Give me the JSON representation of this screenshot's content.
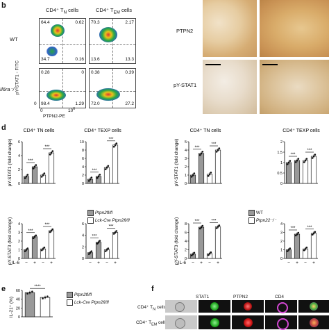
{
  "panel_b": {
    "label": "b",
    "col_titles": [
      "CD4⁺ T",
      "N",
      "cells",
      "CD4⁺ T",
      "EM",
      "cells"
    ],
    "row_labels": [
      "WT",
      "Il6ra⁻/⁻"
    ],
    "y_axis": "pY-STAT1 - FITC",
    "x_axis": "PTPN2-PE",
    "x_ticks": [
      "0",
      "10",
      "6"
    ],
    "y_ticks": [
      "0"
    ],
    "quadrants": [
      [
        "64.4",
        "0.62",
        "34.7",
        "0.16"
      ],
      [
        "70.3",
        "2.17",
        "13.6",
        "13.3"
      ],
      [
        "0.28",
        "0",
        "98.4",
        "1.29"
      ],
      [
        "0.38",
        "0.39",
        "72.0",
        "27.2"
      ]
    ]
  },
  "panel_c": {
    "row_labels": [
      "PTPN2",
      "pY-STAT1"
    ]
  },
  "panel_d": {
    "label": "d",
    "ylabel_stat1": "pY-STAT1 (fold change)",
    "ylabel_stat3": "pY-STAT3 (fold change)",
    "il6_label": "IL-6",
    "il6_states": [
      "−",
      "+",
      "−",
      "+"
    ],
    "sig": "***",
    "legend_left": [
      "Ptpn2fl/fl",
      "Lck-Cre Ptpn2fl/fl"
    ],
    "legend_right": [
      "WT",
      "Ptpn22⁻/⁻"
    ]
  },
  "panel_e": {
    "label": "e",
    "ylabel": "IL-21⁺ (%)",
    "sig": "****",
    "legend": [
      "Ptpn2fl/fl",
      "Lck-Cre Ptpn2fl/fl"
    ]
  },
  "panel_f": {
    "label": "f",
    "col_titles": [
      "STAT1",
      "PTPN2",
      "CD4"
    ],
    "row_labels": [
      "CD4⁺ T",
      "N",
      "cells",
      "CD4⁺ T",
      "EM",
      "cells"
    ]
  },
  "chart_data": [
    {
      "type": "bar",
      "title": "CD4⁺ TN cells",
      "categories": [
        "−",
        "+",
        "−",
        "+"
      ],
      "values": [
        1,
        2.4,
        1.2,
        4.4
      ],
      "ylim": [
        0,
        6
      ],
      "yticks": [
        0,
        2,
        4,
        6
      ],
      "ylabel": "pY-STAT1 (fold change)"
    },
    {
      "type": "bar",
      "title": "CD4⁺ TEXP cells",
      "categories": [
        "−",
        "+",
        "−",
        "+"
      ],
      "values": [
        1,
        1.7,
        3.8,
        9.2
      ],
      "ylim": [
        0,
        10
      ],
      "yticks": [
        0,
        2,
        4,
        6,
        8,
        10
      ],
      "ylabel": "pY-STAT1 (fold change)"
    },
    {
      "type": "bar",
      "title": "CD4⁺ TN cells",
      "categories": [
        "−",
        "+",
        "−",
        "+"
      ],
      "values": [
        1,
        3.6,
        1.1,
        4.0
      ],
      "ylim": [
        0,
        5
      ],
      "yticks": [
        0,
        1,
        2,
        3,
        4,
        5
      ],
      "ylabel": "pY-STAT1 (fold change)"
    },
    {
      "type": "bar",
      "title": "CD4⁺ TEXP cells",
      "categories": [
        "−",
        "+",
        "−",
        "+"
      ],
      "values": [
        1,
        1.1,
        1.1,
        1.3
      ],
      "ylim": [
        0,
        2
      ],
      "yticks": [
        0.0,
        0.5,
        1.0,
        1.5,
        2.0
      ],
      "ylabel": "pY-STAT1 (fold change)"
    },
    {
      "type": "bar",
      "title": "",
      "categories": [
        "−",
        "+",
        "−",
        "+"
      ],
      "values": [
        1,
        2.5,
        1.1,
        3.2
      ],
      "ylim": [
        0,
        4
      ],
      "yticks": [
        0,
        1,
        2,
        3,
        4
      ],
      "ylabel": "pY-STAT3 (fold change)"
    },
    {
      "type": "bar",
      "title": "",
      "categories": [
        "−",
        "+",
        "−",
        "+"
      ],
      "values": [
        1,
        2.8,
        1.5,
        4.5
      ],
      "ylim": [
        0,
        6
      ],
      "yticks": [
        0,
        2,
        4,
        6
      ],
      "ylabel": "pY-STAT3 (fold change)"
    },
    {
      "type": "bar",
      "title": "",
      "categories": [
        "−",
        "+",
        "−",
        "+"
      ],
      "values": [
        1,
        7.2,
        1.1,
        7.3
      ],
      "ylim": [
        0,
        8
      ],
      "yticks": [
        0,
        2,
        4,
        6,
        8
      ],
      "ylabel": "pY-STAT3 (fold change)"
    },
    {
      "type": "bar",
      "title": "",
      "categories": [
        "−",
        "+",
        "−",
        "+"
      ],
      "values": [
        1,
        2.8,
        1.1,
        2.9
      ],
      "ylim": [
        0,
        4
      ],
      "yticks": [
        0,
        1,
        2,
        3,
        4
      ],
      "ylabel": "pY-STAT3 (fold change)"
    },
    {
      "type": "bar",
      "title": "",
      "categories": [
        "Ptpn2fl/fl",
        "Lck-Cre Ptpn2fl/fl"
      ],
      "values": [
        55,
        44
      ],
      "ylim": [
        0,
        60
      ],
      "yticks": [
        0,
        20,
        40,
        60
      ],
      "ylabel": "IL-21⁺ (%)"
    }
  ]
}
